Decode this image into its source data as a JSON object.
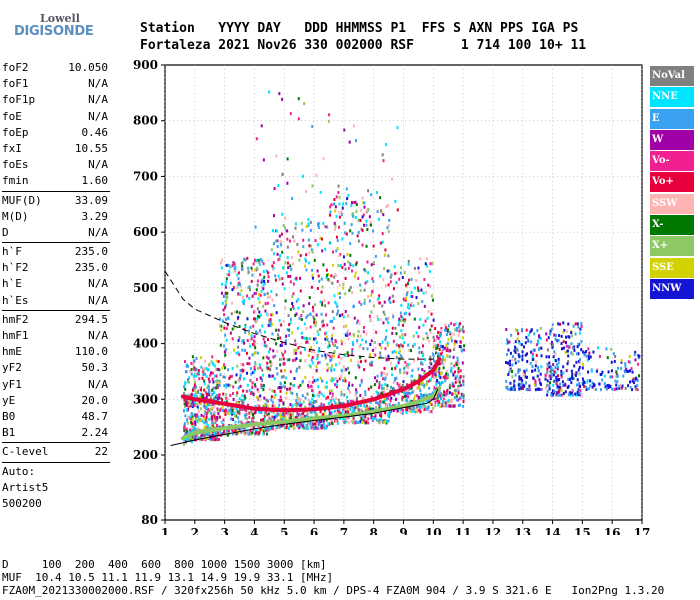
{
  "logo": {
    "line1": "Lowell",
    "line2": "DIGISONDE"
  },
  "header": {
    "labels": "Station   YYYY DAY   DDD HHMMSS P1  FFS S AXN PPS IGA PS",
    "values": "Fortaleza 2021 Nov26 330 002000 RSF      1 714 100 10+ 11"
  },
  "params": {
    "group1": [
      {
        "name": "foF2",
        "value": "10.050"
      },
      {
        "name": "foF1",
        "value": "N/A"
      },
      {
        "name": "foF1p",
        "value": "N/A"
      },
      {
        "name": "foE",
        "value": "N/A"
      },
      {
        "name": "foEp",
        "value": "0.46"
      },
      {
        "name": "fxI",
        "value": "10.55"
      },
      {
        "name": "foEs",
        "value": "N/A"
      },
      {
        "name": "fmin",
        "value": "1.60"
      }
    ],
    "group2": [
      {
        "name": "MUF(D)",
        "value": "33.09"
      },
      {
        "name": "M(D)",
        "value": "3.29"
      },
      {
        "name": "D",
        "value": "N/A"
      }
    ],
    "group3": [
      {
        "name": "h`F",
        "value": "235.0"
      },
      {
        "name": "h`F2",
        "value": "235.0"
      },
      {
        "name": "h`E",
        "value": "N/A"
      },
      {
        "name": "h`Es",
        "value": "N/A"
      }
    ],
    "group4": [
      {
        "name": "hmF2",
        "value": "294.5"
      },
      {
        "name": "hmF1",
        "value": "N/A"
      },
      {
        "name": "hmE",
        "value": "110.0"
      },
      {
        "name": "yF2",
        "value": "50.3"
      },
      {
        "name": "yF1",
        "value": "N/A"
      },
      {
        "name": "yE",
        "value": "20.0"
      },
      {
        "name": "B0",
        "value": "48.7"
      },
      {
        "name": "B1",
        "value": "2.24"
      }
    ],
    "group5": [
      {
        "name": "C-level",
        "value": "22"
      }
    ],
    "group6": [
      "Auto:",
      "Artist5",
      "500200"
    ]
  },
  "legend": [
    {
      "label": "NoVal",
      "color": "#808080"
    },
    {
      "label": "NNE",
      "color": "#00e5ff"
    },
    {
      "label": "E",
      "color": "#3aa0f0"
    },
    {
      "label": "W",
      "color": "#a000a8"
    },
    {
      "label": "Vo-",
      "color": "#f02090"
    },
    {
      "label": "Vo+",
      "color": "#e8003c"
    },
    {
      "label": "SSW",
      "color": "#ffb4b4"
    },
    {
      "label": "X-",
      "color": "#007800"
    },
    {
      "label": "X+",
      "color": "#8cc864"
    },
    {
      "label": "SSE",
      "color": "#d2d200"
    },
    {
      "label": "NNW",
      "color": "#1414d2"
    }
  ],
  "footer": {
    "line1": "D     100  200  400  600  800 1000 1500 3000 [km]",
    "line2": "MUF  10.4 10.5 11.1 11.9 13.1 14.9 19.9 33.1 [MHz]",
    "line3": "FZA0M_2021330002000.RSF / 320fx256h 50 kHz 5.0 km / DPS-4 FZA0M 904 / 3.9 S 321.6 E   Ion2Png 1.3.20"
  },
  "chart_data": {
    "type": "scatter",
    "x_ticks": [
      "1",
      "2",
      "3",
      "4",
      "5",
      "6",
      "7",
      "8",
      "9",
      "10",
      "11",
      "12",
      "13",
      "14",
      "15",
      "16",
      "17"
    ],
    "y_ticks": [
      "80",
      "200",
      "300",
      "400",
      "500",
      "600",
      "700",
      "800",
      "900"
    ],
    "xlim": [
      1,
      17
    ],
    "ylim_breaks": [
      80,
      200,
      900
    ],
    "grid": true,
    "trace_upper": [
      [
        1.6,
        305
      ],
      [
        2,
        300
      ],
      [
        3,
        292
      ],
      [
        4,
        283
      ],
      [
        5,
        280
      ],
      [
        6,
        282
      ],
      [
        7,
        288
      ],
      [
        8,
        300
      ],
      [
        9,
        318
      ],
      [
        9.5,
        332
      ],
      [
        10,
        352
      ],
      [
        10.2,
        372
      ]
    ],
    "trace_lower": [
      [
        1.6,
        230
      ],
      [
        2,
        240
      ],
      [
        3,
        248
      ],
      [
        4,
        255
      ],
      [
        5,
        260
      ],
      [
        6,
        266
      ],
      [
        7,
        270
      ],
      [
        8,
        278
      ],
      [
        9,
        288
      ],
      [
        9.5,
        296
      ],
      [
        10,
        306
      ],
      [
        10.2,
        320
      ]
    ],
    "profile_solid": [
      [
        1.2,
        217
      ],
      [
        2,
        227
      ],
      [
        3,
        237
      ],
      [
        4,
        247
      ],
      [
        5,
        255
      ],
      [
        6,
        262
      ],
      [
        7,
        268
      ],
      [
        8,
        275
      ],
      [
        9,
        285
      ],
      [
        9.8,
        293
      ],
      [
        10,
        300
      ],
      [
        10.15,
        318
      ]
    ],
    "profile_dashed": [
      [
        1,
        530
      ],
      [
        1.6,
        480
      ],
      [
        2,
        462
      ],
      [
        3,
        438
      ],
      [
        4,
        418
      ],
      [
        5,
        402
      ],
      [
        6,
        388
      ],
      [
        7,
        380
      ],
      [
        8,
        375
      ],
      [
        9,
        372
      ],
      [
        10,
        372
      ],
      [
        10.1,
        385
      ]
    ],
    "clusters": [
      {
        "x": [
          1.6,
          2.8
        ],
        "y": [
          230,
          380
        ],
        "density": 420
      },
      {
        "x": [
          2.8,
          4.5
        ],
        "y": [
          240,
          560
        ],
        "density": 520
      },
      {
        "x": [
          4.5,
          6.5
        ],
        "y": [
          250,
          620
        ],
        "density": 560
      },
      {
        "x": [
          6.5,
          8.5
        ],
        "y": [
          260,
          680
        ],
        "density": 520
      },
      {
        "x": [
          8.5,
          10.0
        ],
        "y": [
          280,
          560
        ],
        "density": 320
      },
      {
        "x": [
          10.0,
          11.0
        ],
        "y": [
          290,
          440
        ],
        "density": 260
      },
      {
        "x": [
          12.4,
          13.6
        ],
        "y": [
          320,
          430
        ],
        "density": 170
      },
      {
        "x": [
          13.7,
          15.0
        ],
        "y": [
          310,
          440
        ],
        "density": 230
      },
      {
        "x": [
          15.0,
          16.9
        ],
        "y": [
          320,
          395
        ],
        "density": 120
      },
      {
        "x": [
          4.0,
          8.8
        ],
        "y": [
          600,
          860
        ],
        "density": 60
      }
    ]
  }
}
